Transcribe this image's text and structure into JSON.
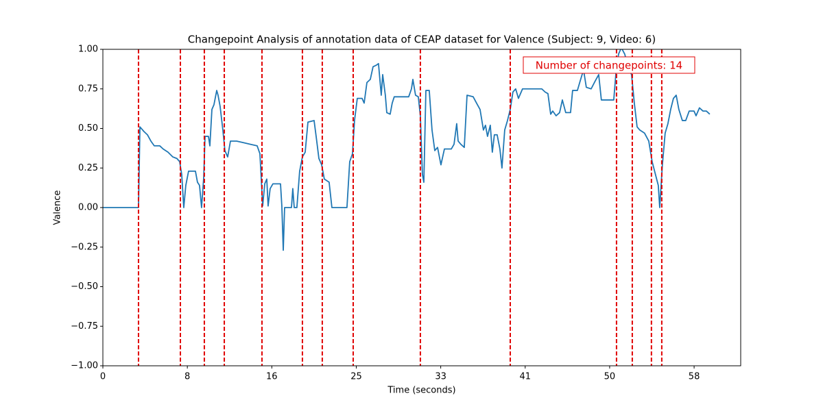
{
  "chart_data": {
    "type": "line",
    "title": "Changepoint Analysis of annotation data of CEAP dataset for Valence (Subject: 9, Video: 6)",
    "x_label": "Time (seconds)",
    "y_label": "Valence",
    "annotation": "Number of changepoints: 14",
    "color": "#1f77b4",
    "changepoint_color": "#e00000",
    "xlim": [
      0,
      62.3
    ],
    "ylim": [
      -1,
      1
    ],
    "xticks": [
      {
        "value": 0,
        "label": "0"
      },
      {
        "value": 8.25,
        "label": "8"
      },
      {
        "value": 16.5,
        "label": "16"
      },
      {
        "value": 24.75,
        "label": "25"
      },
      {
        "value": 33,
        "label": "33"
      },
      {
        "value": 41.25,
        "label": "41"
      },
      {
        "value": 49.5,
        "label": "50"
      },
      {
        "value": 57.75,
        "label": "58"
      }
    ],
    "yticks": [
      {
        "value": -1,
        "label": "−1.00"
      },
      {
        "value": -0.75,
        "label": "−0.75"
      },
      {
        "value": -0.5,
        "label": "−0.50"
      },
      {
        "value": -0.25,
        "label": "−0.25"
      },
      {
        "value": 0,
        "label": "0.00"
      },
      {
        "value": 0.25,
        "label": "0.25"
      },
      {
        "value": 0.5,
        "label": "0.50"
      },
      {
        "value": 0.75,
        "label": "0.75"
      },
      {
        "value": 1,
        "label": "1.00"
      }
    ],
    "changepoints": [
      3.48,
      7.57,
      9.91,
      11.86,
      15.54,
      19.49,
      21.43,
      24.45,
      31.01,
      39.79,
      50.17,
      51.71,
      53.58,
      54.59
    ],
    "x": [
      0,
      3.48,
      3.62,
      4.02,
      4.35,
      4.69,
      5.02,
      5.56,
      5.89,
      6.36,
      6.83,
      7.23,
      7.5,
      7.7,
      7.9,
      8.1,
      8.37,
      9.04,
      9.24,
      9.44,
      9.64,
      9.85,
      9.98,
      10.31,
      10.45,
      10.65,
      10.85,
      11.12,
      11.25,
      11.45,
      11.72,
      11.92,
      12.19,
      12.46,
      13.06,
      13.73,
      14.4,
      15.07,
      15.34,
      15.61,
      15.81,
      16.01,
      16.14,
      16.34,
      16.61,
      17.35,
      17.48,
      17.62,
      17.75,
      18.42,
      18.55,
      18.69,
      18.95,
      19.22,
      19.49,
      19.76,
      20.03,
      20.63,
      20.83,
      21.1,
      21.37,
      21.63,
      22.1,
      22.37,
      23.84,
      24.11,
      24.38,
      24.58,
      24.85,
      25.32,
      25.52,
      25.79,
      26.12,
      26.39,
      26.72,
      26.92,
      27.19,
      27.33,
      27.59,
      27.73,
      28.06,
      28.26,
      28.46,
      29.87,
      30.14,
      30.28,
      30.54,
      30.81,
      31.01,
      31.21,
      31.35,
      31.55,
      31.88,
      32.15,
      32.42,
      32.69,
      33.02,
      33.36,
      34.03,
      34.3,
      34.56,
      34.7,
      34.96,
      35.3,
      35.57,
      36.17,
      36.5,
      36.84,
      37.17,
      37.37,
      37.57,
      37.84,
      38.04,
      38.24,
      38.51,
      38.78,
      38.98,
      39.25,
      39.52,
      39.79,
      40.05,
      40.32,
      40.59,
      40.99,
      42.2,
      42.87,
      43.2,
      43.47,
      43.74,
      43.94,
      44.27,
      44.61,
      44.88,
      45.21,
      45.68,
      45.88,
      46.35,
      46.62,
      46.95,
      47.22,
      47.69,
      48.09,
      48.43,
      48.69,
      49.9,
      50.1,
      50.37,
      50.64,
      50.97,
      51.31,
      51.64,
      51.91,
      52.18,
      52.44,
      52.91,
      53.32,
      53.65,
      54.05,
      54.25,
      54.39,
      54.65,
      54.92,
      55.19,
      55.46,
      55.73,
      56,
      56.26,
      56.6,
      56.93,
      57.27,
      57.74,
      57.94,
      58.27,
      58.61,
      58.94,
      59.28
    ],
    "values": [
      0,
      0,
      0.51,
      0.48,
      0.46,
      0.42,
      0.39,
      0.39,
      0.37,
      0.35,
      0.32,
      0.31,
      0.29,
      0.21,
      0,
      0.14,
      0.23,
      0.23,
      0.16,
      0.14,
      0,
      0.19,
      0.45,
      0.45,
      0.39,
      0.62,
      0.65,
      0.74,
      0.71,
      0.64,
      0.49,
      0.36,
      0.32,
      0.42,
      0.42,
      0.41,
      0.4,
      0.39,
      0.34,
      0.01,
      0.15,
      0.18,
      0.01,
      0.12,
      0.15,
      0.15,
      0.01,
      -0.27,
      0,
      0,
      0.12,
      0,
      0,
      0.23,
      0.32,
      0.35,
      0.54,
      0.55,
      0.45,
      0.31,
      0.27,
      0.18,
      0.16,
      0,
      0,
      0.29,
      0.34,
      0.55,
      0.69,
      0.69,
      0.66,
      0.79,
      0.81,
      0.89,
      0.9,
      0.91,
      0.71,
      0.84,
      0.71,
      0.6,
      0.59,
      0.66,
      0.7,
      0.7,
      0.75,
      0.81,
      0.71,
      0.7,
      0.58,
      0.21,
      0.16,
      0.74,
      0.74,
      0.49,
      0.36,
      0.38,
      0.27,
      0.37,
      0.37,
      0.4,
      0.53,
      0.42,
      0.4,
      0.38,
      0.71,
      0.7,
      0.66,
      0.62,
      0.49,
      0.52,
      0.45,
      0.52,
      0.35,
      0.46,
      0.46,
      0.37,
      0.25,
      0.49,
      0.55,
      0.62,
      0.73,
      0.75,
      0.69,
      0.75,
      0.75,
      0.75,
      0.73,
      0.72,
      0.59,
      0.61,
      0.58,
      0.6,
      0.68,
      0.6,
      0.6,
      0.74,
      0.74,
      0.8,
      0.87,
      0.76,
      0.75,
      0.8,
      0.84,
      0.68,
      0.68,
      0.84,
      0.97,
      1.01,
      0.97,
      0.89,
      0.84,
      0.66,
      0.51,
      0.49,
      0.47,
      0.42,
      0.29,
      0.19,
      0.14,
      0,
      0.27,
      0.47,
      0.53,
      0.62,
      0.69,
      0.71,
      0.62,
      0.55,
      0.55,
      0.61,
      0.61,
      0.58,
      0.63,
      0.61,
      0.61,
      0.59
    ]
  }
}
